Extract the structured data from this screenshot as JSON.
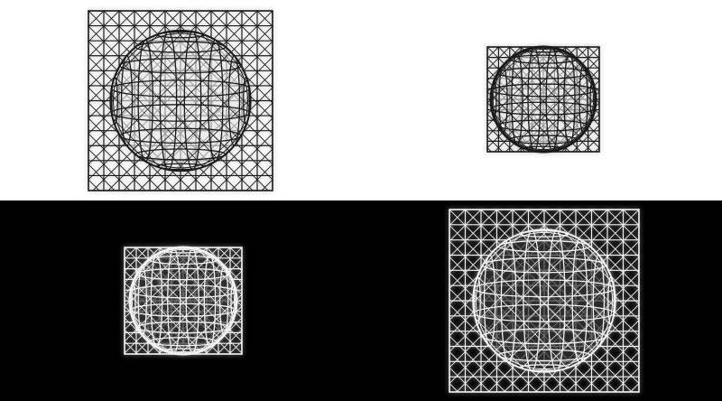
{
  "artwork": {
    "colors": {
      "top_background": "#ffffff",
      "bottom_background": "#000000",
      "ink_dark": "#1a1a1a",
      "ink_light": "#f2f2f2"
    },
    "panels": [
      {
        "id": "top-left",
        "style": "dark-on-light",
        "sphere_scale": 0.78,
        "grid_divisions": 12
      },
      {
        "id": "top-right",
        "style": "dark-on-light",
        "sphere_scale": 1.0,
        "grid_divisions": 10
      },
      {
        "id": "bottom-left",
        "style": "light-on-dark",
        "sphere_scale": 1.0,
        "grid_divisions": 10
      },
      {
        "id": "bottom-right",
        "style": "light-on-dark",
        "sphere_scale": 0.78,
        "grid_divisions": 12
      }
    ]
  }
}
